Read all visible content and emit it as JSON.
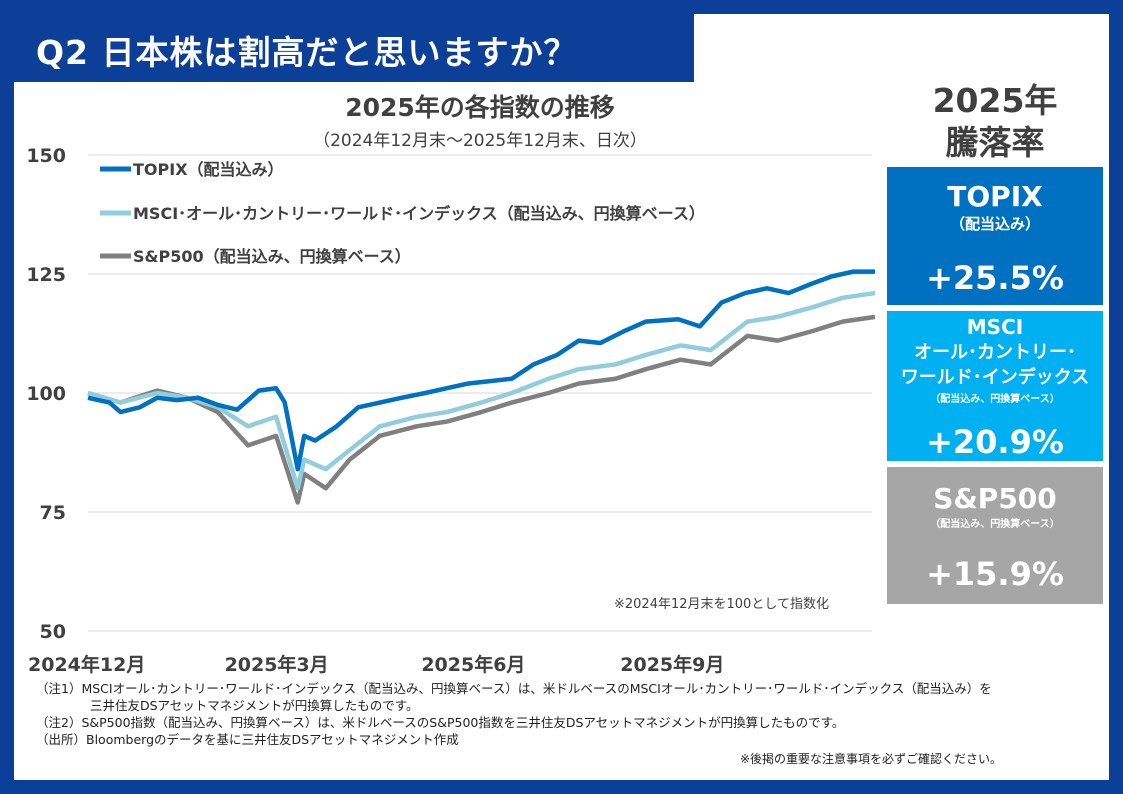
{
  "header": {
    "title": "Q2 日本株は割高だと思いますか？"
  },
  "chart_data": {
    "type": "line",
    "title": "2025年の各指数の推移",
    "subtitle": "（2024年12月末～2025年12月末、日次）",
    "note": "※2024年12月末を100として指数化",
    "ylim": [
      50,
      150
    ],
    "yticks": [
      150,
      125,
      100,
      75,
      50
    ],
    "xlim": [
      "2024-12-31",
      "2025-12-30"
    ],
    "xticks": [
      {
        "date": "2024-12-31",
        "label": "2024年12月"
      },
      {
        "date": "2025-03-31",
        "label": "2025年3月"
      },
      {
        "date": "2025-06-30",
        "label": "2025年6月"
      },
      {
        "date": "2025-09-30",
        "label": "2025年9月"
      }
    ],
    "grid": true,
    "legend": "top-left",
    "series": [
      {
        "name": "TOPIX（配当込み）",
        "color": "#0070c0",
        "points": [
          [
            "2024-12-31",
            99
          ],
          [
            "2025-01-10",
            98
          ],
          [
            "2025-01-15",
            96
          ],
          [
            "2025-01-24",
            97
          ],
          [
            "2025-02-01",
            99
          ],
          [
            "2025-02-10",
            98.5
          ],
          [
            "2025-02-20",
            99
          ],
          [
            "2025-03-01",
            97.5
          ],
          [
            "2025-03-10",
            96.5
          ],
          [
            "2025-03-20",
            100.5
          ],
          [
            "2025-03-28",
            101
          ],
          [
            "2025-04-01",
            98
          ],
          [
            "2025-04-07",
            84
          ],
          [
            "2025-04-10",
            91
          ],
          [
            "2025-04-15",
            90
          ],
          [
            "2025-04-25",
            93
          ],
          [
            "2025-05-05",
            97
          ],
          [
            "2025-05-15",
            98
          ],
          [
            "2025-05-25",
            99
          ],
          [
            "2025-06-05",
            100
          ],
          [
            "2025-06-15",
            101
          ],
          [
            "2025-06-25",
            102
          ],
          [
            "2025-07-05",
            102.5
          ],
          [
            "2025-07-15",
            103
          ],
          [
            "2025-07-25",
            106
          ],
          [
            "2025-08-05",
            108
          ],
          [
            "2025-08-15",
            111
          ],
          [
            "2025-08-25",
            110.5
          ],
          [
            "2025-09-05",
            113
          ],
          [
            "2025-09-15",
            115
          ],
          [
            "2025-09-30",
            115.5
          ],
          [
            "2025-10-10",
            114
          ],
          [
            "2025-10-20",
            119
          ],
          [
            "2025-10-31",
            121
          ],
          [
            "2025-11-10",
            122
          ],
          [
            "2025-11-20",
            121
          ],
          [
            "2025-12-01",
            123
          ],
          [
            "2025-12-10",
            124.5
          ],
          [
            "2025-12-20",
            125.5
          ],
          [
            "2025-12-30",
            125.5
          ]
        ]
      },
      {
        "name": "MSCI･オール･カントリー･ワールド･インデックス（配当込み、円換算ベース）",
        "color": "#92cddc",
        "points": [
          [
            "2024-12-31",
            100
          ],
          [
            "2025-01-15",
            98
          ],
          [
            "2025-02-01",
            100
          ],
          [
            "2025-02-15",
            99
          ],
          [
            "2025-03-01",
            97
          ],
          [
            "2025-03-15",
            93
          ],
          [
            "2025-03-28",
            95
          ],
          [
            "2025-04-07",
            80
          ],
          [
            "2025-04-10",
            86
          ],
          [
            "2025-04-20",
            84
          ],
          [
            "2025-05-01",
            88
          ],
          [
            "2025-05-15",
            93
          ],
          [
            "2025-06-01",
            95
          ],
          [
            "2025-06-15",
            96
          ],
          [
            "2025-07-01",
            98
          ],
          [
            "2025-07-15",
            100
          ],
          [
            "2025-08-01",
            103
          ],
          [
            "2025-08-15",
            105
          ],
          [
            "2025-09-01",
            106
          ],
          [
            "2025-09-15",
            108
          ],
          [
            "2025-10-01",
            110
          ],
          [
            "2025-10-15",
            109
          ],
          [
            "2025-11-01",
            115
          ],
          [
            "2025-11-15",
            116
          ],
          [
            "2025-12-01",
            118
          ],
          [
            "2025-12-15",
            120
          ],
          [
            "2025-12-30",
            121
          ]
        ]
      },
      {
        "name": "S&P500（配当込み、円換算ベース）",
        "color": "#808080",
        "points": [
          [
            "2024-12-31",
            100
          ],
          [
            "2025-01-15",
            98
          ],
          [
            "2025-02-01",
            100.5
          ],
          [
            "2025-02-15",
            99
          ],
          [
            "2025-03-01",
            96
          ],
          [
            "2025-03-15",
            89
          ],
          [
            "2025-03-28",
            91
          ],
          [
            "2025-04-07",
            77
          ],
          [
            "2025-04-10",
            83
          ],
          [
            "2025-04-20",
            80
          ],
          [
            "2025-05-01",
            86
          ],
          [
            "2025-05-15",
            91
          ],
          [
            "2025-06-01",
            93
          ],
          [
            "2025-06-15",
            94
          ],
          [
            "2025-07-01",
            96
          ],
          [
            "2025-07-15",
            98
          ],
          [
            "2025-08-01",
            100
          ],
          [
            "2025-08-15",
            102
          ],
          [
            "2025-09-01",
            103
          ],
          [
            "2025-09-15",
            105
          ],
          [
            "2025-10-01",
            107
          ],
          [
            "2025-10-15",
            106
          ],
          [
            "2025-11-01",
            112
          ],
          [
            "2025-11-15",
            111
          ],
          [
            "2025-12-01",
            113
          ],
          [
            "2025-12-15",
            115
          ],
          [
            "2025-12-30",
            116
          ]
        ]
      }
    ]
  },
  "panel": {
    "heading1": "2025年",
    "heading2": "騰落率",
    "topix": {
      "name": "TOPIX",
      "sub": "（配当込み）",
      "pct": "+25.5%",
      "color": "#0070c0"
    },
    "msci": {
      "name1": "MSCI",
      "name2": "オール･カントリー･",
      "name3": "ワールド･インデックス",
      "sub": "（配当込み、円換算ベース）",
      "pct": "+20.9%",
      "color": "#00b0f0"
    },
    "sp": {
      "name": "S&P500",
      "sub": "（配当込み、円換算ベース）",
      "pct": "+15.9%",
      "color": "#a6a6a6"
    }
  },
  "footnotes": {
    "n1a": "（注1）MSCIオール･カントリー･ワールド･インデックス（配当込み、円換算ベース）は、米ドルベースのMSCIオール･カントリー･ワールド･インデックス（配当込み）を",
    "n1b": "三井住友DSアセットマネジメントが円換算したものです。",
    "n2": "（注2）S&P500指数（配当込み、円換算ベース）は、米ドルベースのS&P500指数を三井住友DSアセットマネジメントが円換算したものです。",
    "src": "（出所）Bloombergのデータを基に三井住友DSアセットマネジメント作成",
    "caution": "※後掲の重要な注意事項を必ずご確認ください。"
  }
}
